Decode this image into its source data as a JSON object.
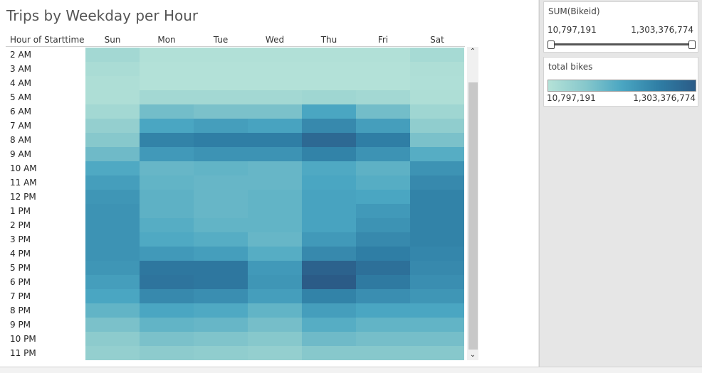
{
  "chart_data": {
    "type": "heatmap",
    "title": "Trips by Weekday per Hour",
    "row_header": "Hour of Starttime",
    "columns": [
      "Sun",
      "Mon",
      "Tue",
      "Wed",
      "Thu",
      "Fri",
      "Sat"
    ],
    "rows": [
      "2 AM",
      "3 AM",
      "4 AM",
      "5 AM",
      "6 AM",
      "7 AM",
      "8 AM",
      "9 AM",
      "10 AM",
      "11 AM",
      "12 PM",
      "1 PM",
      "2 PM",
      "3 PM",
      "4 PM",
      "5 PM",
      "6 PM",
      "7 PM",
      "8 PM",
      "9 PM",
      "10 PM",
      "11 PM"
    ],
    "values": [
      [
        0.1,
        0.02,
        0.02,
        0.02,
        0.02,
        0.02,
        0.08
      ],
      [
        0.06,
        0.01,
        0.01,
        0.01,
        0.01,
        0.01,
        0.04
      ],
      [
        0.04,
        0.01,
        0.01,
        0.01,
        0.01,
        0.01,
        0.03
      ],
      [
        0.04,
        0.1,
        0.1,
        0.1,
        0.12,
        0.1,
        0.04
      ],
      [
        0.1,
        0.33,
        0.3,
        0.3,
        0.5,
        0.33,
        0.12
      ],
      [
        0.18,
        0.5,
        0.55,
        0.52,
        0.68,
        0.55,
        0.2
      ],
      [
        0.25,
        0.72,
        0.75,
        0.75,
        0.9,
        0.75,
        0.3
      ],
      [
        0.35,
        0.58,
        0.62,
        0.62,
        0.72,
        0.62,
        0.45
      ],
      [
        0.48,
        0.38,
        0.4,
        0.38,
        0.48,
        0.42,
        0.62
      ],
      [
        0.55,
        0.4,
        0.38,
        0.38,
        0.5,
        0.45,
        0.68
      ],
      [
        0.6,
        0.42,
        0.38,
        0.4,
        0.52,
        0.5,
        0.72
      ],
      [
        0.62,
        0.42,
        0.38,
        0.4,
        0.52,
        0.58,
        0.72
      ],
      [
        0.62,
        0.45,
        0.4,
        0.4,
        0.52,
        0.62,
        0.72
      ],
      [
        0.62,
        0.48,
        0.45,
        0.38,
        0.58,
        0.68,
        0.72
      ],
      [
        0.62,
        0.58,
        0.55,
        0.45,
        0.68,
        0.75,
        0.7
      ],
      [
        0.6,
        0.8,
        0.8,
        0.58,
        0.95,
        0.85,
        0.68
      ],
      [
        0.55,
        0.82,
        0.8,
        0.6,
        1.0,
        0.78,
        0.65
      ],
      [
        0.5,
        0.68,
        0.65,
        0.55,
        0.72,
        0.65,
        0.6
      ],
      [
        0.4,
        0.5,
        0.48,
        0.4,
        0.55,
        0.5,
        0.5
      ],
      [
        0.3,
        0.4,
        0.38,
        0.32,
        0.45,
        0.4,
        0.4
      ],
      [
        0.22,
        0.3,
        0.28,
        0.25,
        0.35,
        0.32,
        0.32
      ],
      [
        0.18,
        0.22,
        0.2,
        0.18,
        0.25,
        0.25,
        0.25
      ]
    ],
    "value_scale": "normalized 0-1 between legend min and max"
  },
  "filter_card": {
    "title": "SUM(Bikeid)",
    "min": "10,797,191",
    "max": "1,303,376,774",
    "range_low": 0,
    "range_high": 1
  },
  "legend_card": {
    "title": "total bikes",
    "min": "10,797,191",
    "max": "1,303,376,774",
    "colors": [
      "#b5e2d8",
      "#87c8cc",
      "#4aa6c2",
      "#2f7ea5",
      "#2b5b87"
    ]
  },
  "scrollbar": {
    "up_icon": "chevron-up-icon",
    "down_icon": "chevron-down-icon"
  }
}
